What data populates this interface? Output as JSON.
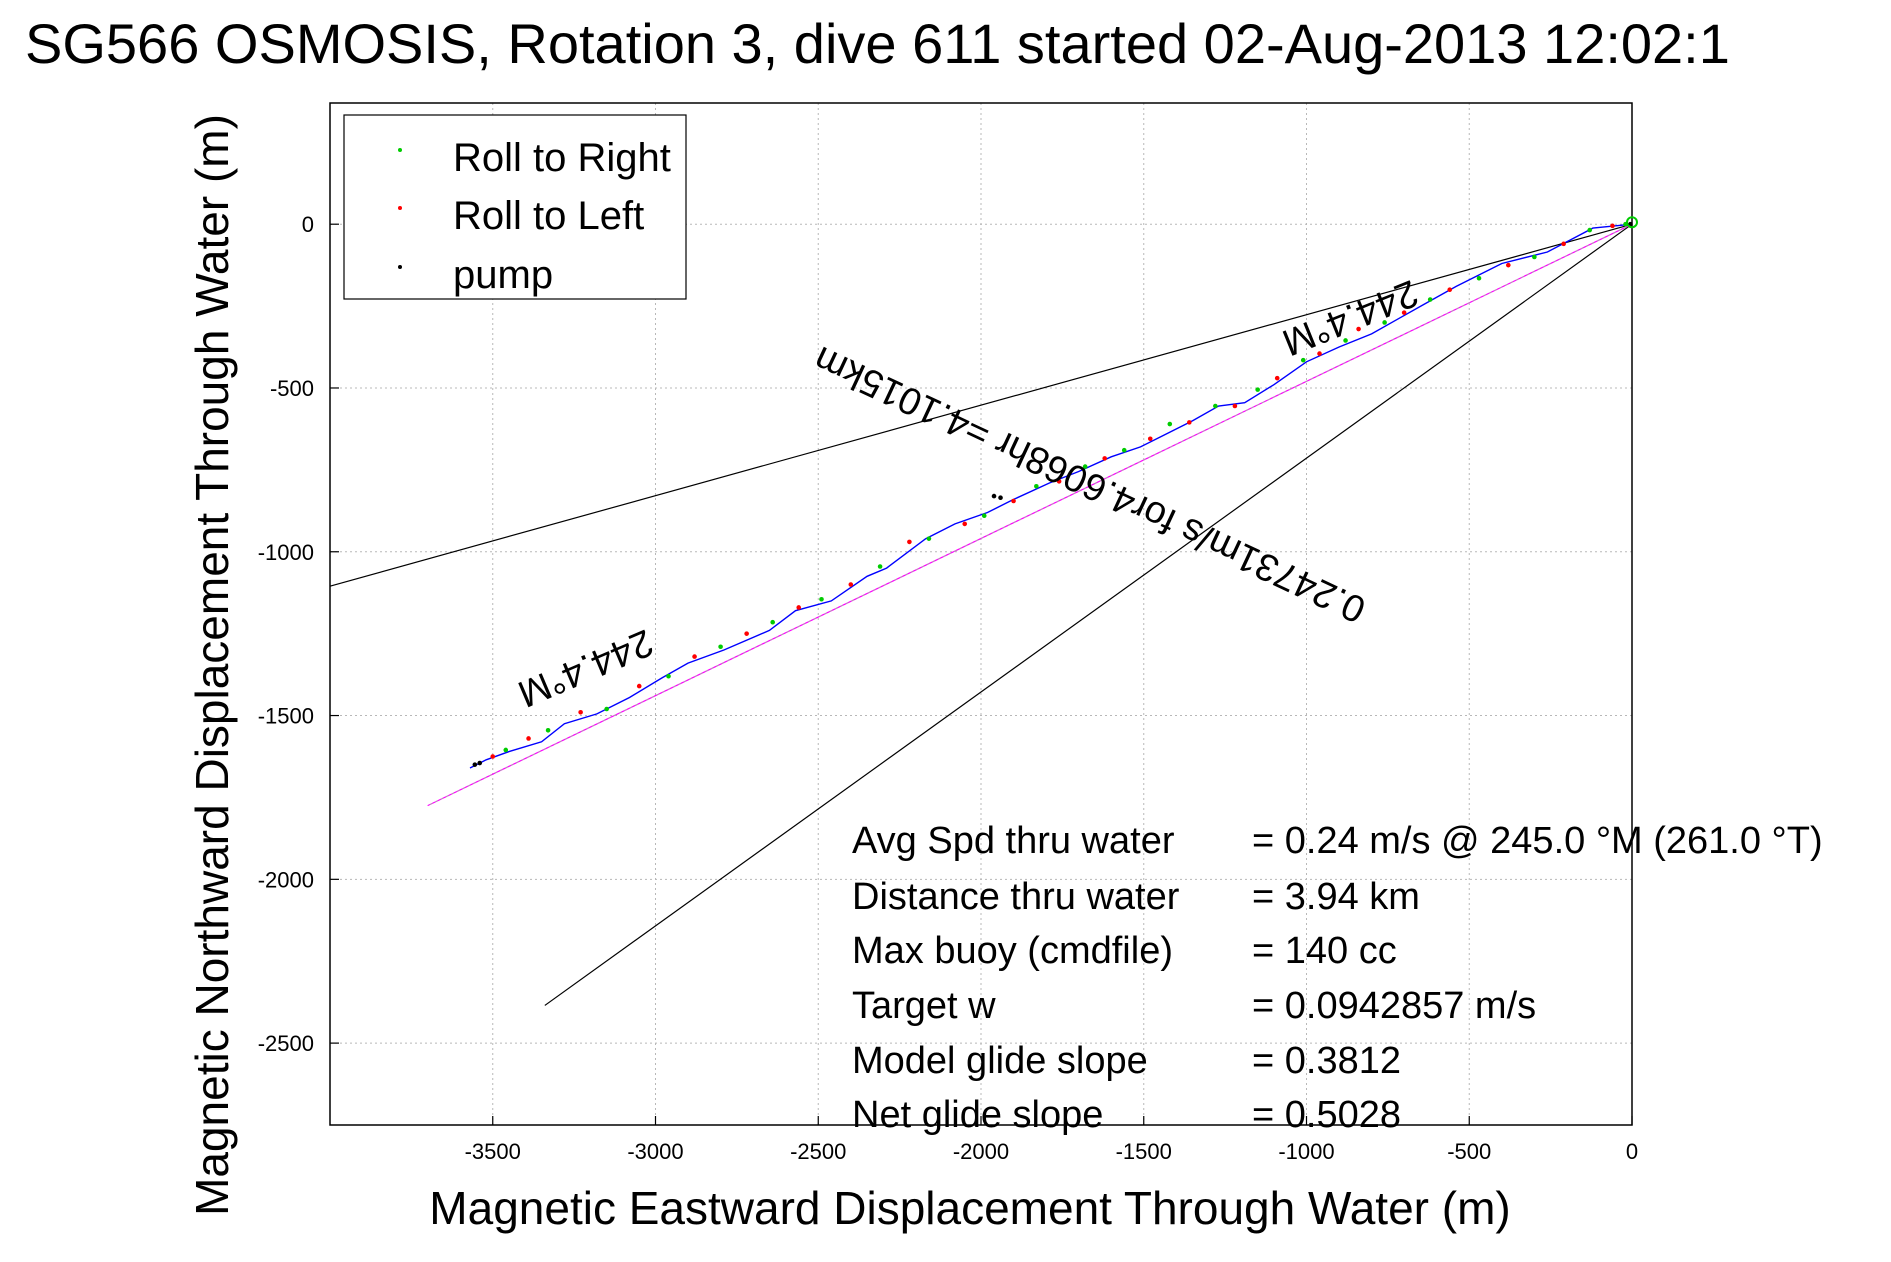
{
  "chart_data": {
    "type": "scatter",
    "title": "SG566 OSMOSIS, Rotation 3, dive 611 started 02-Aug-2013 12:02:1",
    "xlabel": "Magnetic Eastward Displacement Through Water (m)",
    "ylabel": "Magnetic Northward Displacement Through Water (m)",
    "xlim": [
      -4000,
      0
    ],
    "ylim": [
      -2750,
      370
    ],
    "xticks": [
      -3500,
      -3000,
      -2500,
      -2000,
      -1500,
      -1000,
      -500,
      0
    ],
    "yticks": [
      0,
      -500,
      -1000,
      -1500,
      -2000,
      -2500
    ],
    "grid": true,
    "legend_position": "top-left",
    "legend": [
      {
        "name": "Roll to Right",
        "color": "#00cc00"
      },
      {
        "name": "Roll to Left",
        "color": "#ff0000"
      },
      {
        "name": "pump",
        "color": "#000000"
      }
    ],
    "track": {
      "color": "#0000ff",
      "x": [
        0,
        -120,
        -260,
        -400,
        -540,
        -640,
        -720,
        -800,
        -900,
        -1000,
        -1100,
        -1190,
        -1270,
        -1350,
        -1450,
        -1510,
        -1600,
        -1700,
        -1790,
        -1900,
        -1980,
        -2080,
        -2170,
        -2290,
        -2350,
        -2460,
        -2570,
        -2650,
        -2790,
        -2900,
        -2980,
        -3080,
        -3180,
        -3280,
        -3350,
        -3450,
        -3520,
        -3570
      ],
      "y": [
        0,
        -12,
        -85,
        -120,
        -190,
        -245,
        -290,
        -335,
        -375,
        -420,
        -490,
        -545,
        -555,
        -600,
        -650,
        -680,
        -710,
        -755,
        -790,
        -840,
        -880,
        -915,
        -960,
        -1050,
        -1075,
        -1150,
        -1180,
        -1240,
        -1300,
        -1340,
        -1385,
        -1445,
        -1495,
        -1525,
        -1580,
        -1610,
        -1635,
        -1660
      ]
    },
    "points": {
      "roll_right": {
        "x": [
          -20,
          -130,
          -300,
          -470,
          -620,
          -760,
          -880,
          -1010,
          -1150,
          -1280,
          -1420,
          -1560,
          -1680,
          -1830,
          -1990,
          -2160,
          -2310,
          -2490,
          -2640,
          -2800,
          -2960,
          -3150,
          -3330,
          -3460
        ],
        "y": [
          0,
          -18,
          -100,
          -165,
          -230,
          -300,
          -355,
          -415,
          -505,
          -555,
          -610,
          -690,
          -740,
          -800,
          -890,
          -960,
          -1045,
          -1145,
          -1215,
          -1290,
          -1380,
          -1480,
          -1545,
          -1605
        ]
      },
      "roll_left": {
        "x": [
          -60,
          -210,
          -380,
          -560,
          -700,
          -840,
          -960,
          -1090,
          -1220,
          -1360,
          -1480,
          -1620,
          -1760,
          -1900,
          -2050,
          -2220,
          -2400,
          -2560,
          -2720,
          -2880,
          -3050,
          -3230,
          -3390,
          -3500
        ],
        "y": [
          -5,
          -60,
          -125,
          -200,
          -270,
          -320,
          -395,
          -470,
          -555,
          -605,
          -655,
          -715,
          -785,
          -845,
          -915,
          -970,
          -1100,
          -1170,
          -1250,
          -1320,
          -1410,
          -1490,
          -1570,
          -1625
        ]
      },
      "pump": {
        "x": [
          -5,
          -1940,
          -1960,
          -3540,
          -3555
        ],
        "y": [
          0,
          -835,
          -830,
          -1645,
          -1650
        ]
      }
    },
    "lines": [
      {
        "name": "",
        "color": "#000000",
        "x": [
          0,
          -4000
        ],
        "y": [
          0,
          -1105
        ]
      },
      {
        "name": "",
        "color": "#000000",
        "x": [
          0,
          -3340
        ],
        "y": [
          0,
          -2385
        ]
      },
      {
        "name": "",
        "color": "#ff00ff",
        "x": [
          0,
          -3700
        ],
        "y": [
          0,
          -1775
        ]
      },
      {
        "name": "",
        "color": "#aaaaaa",
        "x": [
          0,
          -3700
        ],
        "y": [
          0,
          -1775
        ]
      }
    ],
    "annotations": [
      {
        "text": "244.4°M",
        "x": -880,
        "y": -250,
        "angle": 158
      },
      {
        "text": "0.24731m/s for4.6068hr =4.1015km",
        "x": -1650,
        "y": -760,
        "angle": 205
      },
      {
        "text": "244.4°M",
        "x": -3230,
        "y": -1320,
        "angle": 157
      }
    ],
    "stats": [
      {
        "label": "Avg Spd thru water",
        "value": "=  0.24 m/s @ 245.0 °M (261.0 °T)"
      },
      {
        "label": "Distance thru water",
        "value": "=  3.94 km"
      },
      {
        "label": "Max buoy (cmdfile)",
        "value": "= 140 cc"
      },
      {
        "label": "Target w",
        "value": "= 0.0942857 m/s"
      },
      {
        "label": "Model glide slope",
        "value": "= 0.3812"
      },
      {
        "label": "Net glide slope",
        "value": "= 0.5028"
      }
    ]
  }
}
